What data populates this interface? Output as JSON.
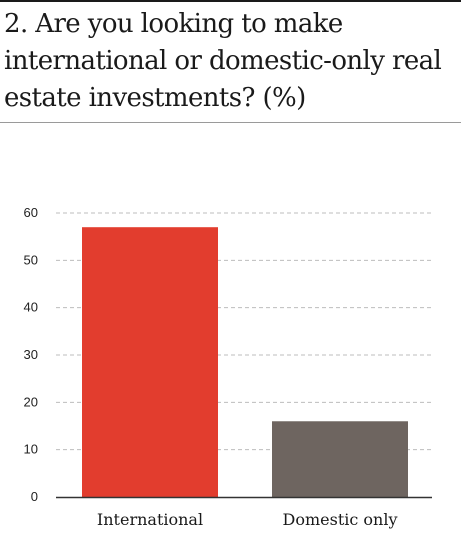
{
  "title": "2. Are you looking to make international or domestic-only real estate investments? (%)",
  "colors": {
    "international": "#e23d2e",
    "domestic": "#6e6560",
    "grid": "#bdbdbd",
    "axis": "#333333"
  },
  "chart_data": {
    "type": "bar",
    "title": "2. Are you looking to make international or domestic-only real estate investments? (%)",
    "xlabel": "",
    "ylabel": "",
    "categories": [
      "International",
      "Domestic only"
    ],
    "values": [
      57,
      16
    ],
    "ylim": [
      0,
      60
    ],
    "yticks": [
      0,
      10,
      20,
      30,
      40,
      50,
      60
    ],
    "grid": true,
    "legend": "none"
  }
}
